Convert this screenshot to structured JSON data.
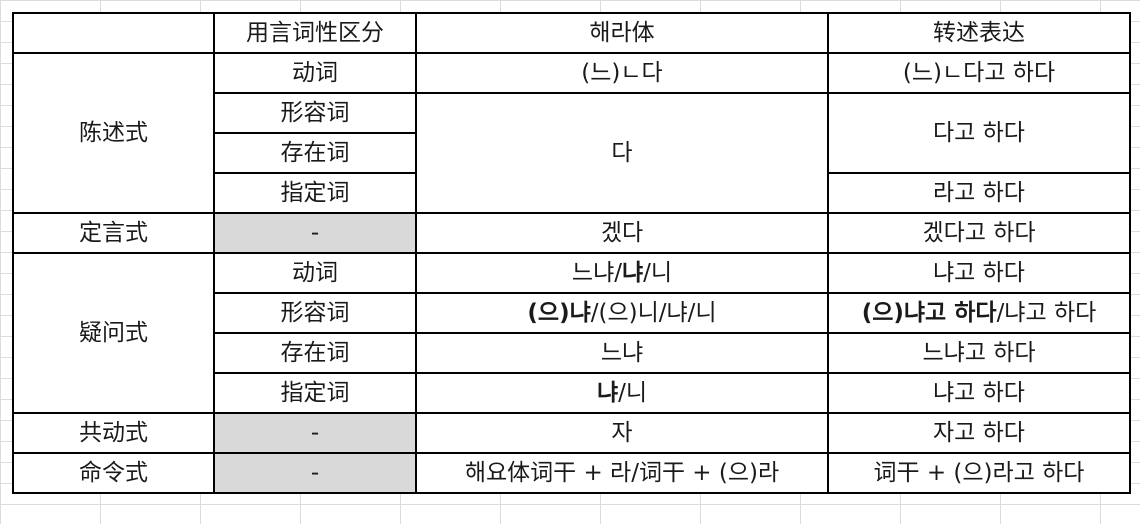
{
  "header": {
    "empty": "",
    "col_type": "用言词性区分",
    "col_haera": "해라体",
    "col_reported": "转述表达"
  },
  "declarative": {
    "label": "陈述式",
    "verb": {
      "type": "动词",
      "haera": "(느)ㄴ다",
      "reported": "(느)ㄴ다고 하다"
    },
    "adjective": {
      "type": "形容词"
    },
    "existential": {
      "type": "存在词"
    },
    "copula": {
      "type": "指定词",
      "reported": "라고 하다"
    },
    "merged_haera": "다",
    "merged_reported": "다고 하다"
  },
  "assertive": {
    "label": "定言式",
    "type": "-",
    "haera": "겠다",
    "reported": "겠다고 하다"
  },
  "interrogative": {
    "label": "疑问式",
    "verb": {
      "type": "动词",
      "haera_a": "느냐/",
      "haera_b": "냐",
      "haera_c": "/니",
      "reported": "냐고 하다"
    },
    "adjective": {
      "type": "形容词",
      "haera_a": "(으)냐",
      "haera_b": "/(으)니/냐/니",
      "reported_a": "(으)냐고 하다",
      "reported_b": "/냐고 하다"
    },
    "existential": {
      "type": "存在词",
      "haera": "느냐",
      "reported": "느냐고 하다"
    },
    "copula": {
      "type": "指定词",
      "haera_a": "냐",
      "haera_b": "/니",
      "reported": "냐고 하다"
    }
  },
  "propositive": {
    "label": "共动式",
    "type": "-",
    "haera": "자",
    "reported": "자고 하다"
  },
  "imperative": {
    "label": "命令式",
    "type": "-",
    "haera": "해요体词干 + 라/词干 + (으)라",
    "reported": "词干 + (으)라고 하다"
  },
  "colors": {
    "grid_border": "#000000",
    "gray_cell": "#d9d9d9",
    "sheet_grid": "#dcdcdc"
  }
}
